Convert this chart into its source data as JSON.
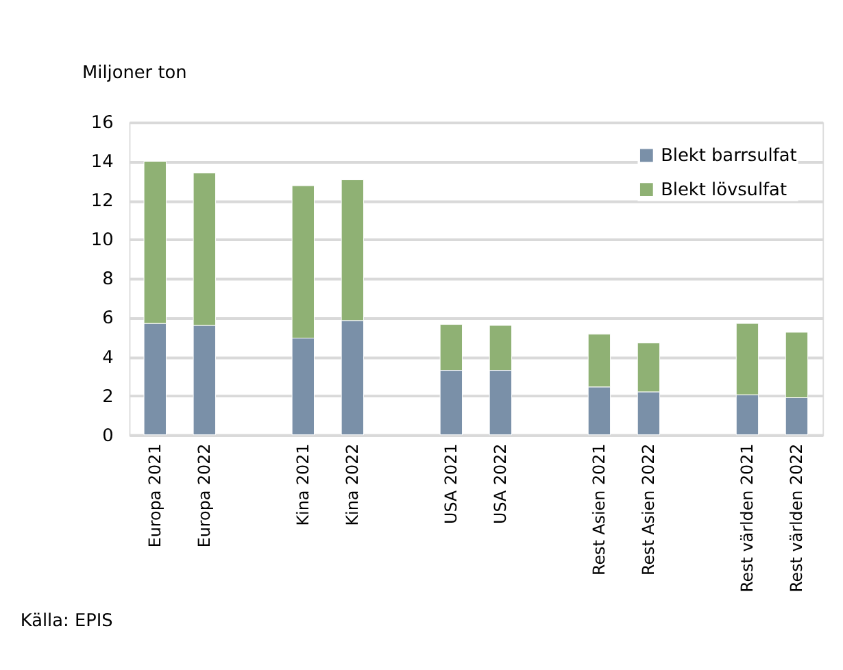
{
  "chart_data": {
    "type": "bar",
    "stacked": true,
    "ylabel": "Miljoner ton",
    "categories": [
      "Europa 2021",
      "Europa 2022",
      null,
      "Kina 2021",
      "Kina 2022",
      null,
      "USA 2021",
      "USA 2022",
      null,
      "Rest Asien 2021",
      "Rest Asien 2022",
      null,
      "Rest världen 2021",
      "Rest världen 2022"
    ],
    "series": [
      {
        "name": "Blekt barrsulfat",
        "color": "#7a90a8",
        "values": [
          5.7,
          5.6,
          null,
          4.95,
          5.85,
          null,
          3.3,
          3.3,
          null,
          2.45,
          2.2,
          null,
          2.05,
          1.9
        ]
      },
      {
        "name": "Blekt lövsulfat",
        "color": "#8fb174",
        "values": [
          8.3,
          7.8,
          null,
          7.8,
          7.2,
          null,
          2.35,
          2.3,
          null,
          2.7,
          2.5,
          null,
          3.65,
          3.35
        ]
      }
    ],
    "ylim": [
      0,
      16
    ],
    "yticks": [
      0,
      2,
      4,
      6,
      8,
      10,
      12,
      14,
      16
    ],
    "grid": "y",
    "legend": "top right",
    "annotations": [
      "Källa: EPIS"
    ]
  }
}
